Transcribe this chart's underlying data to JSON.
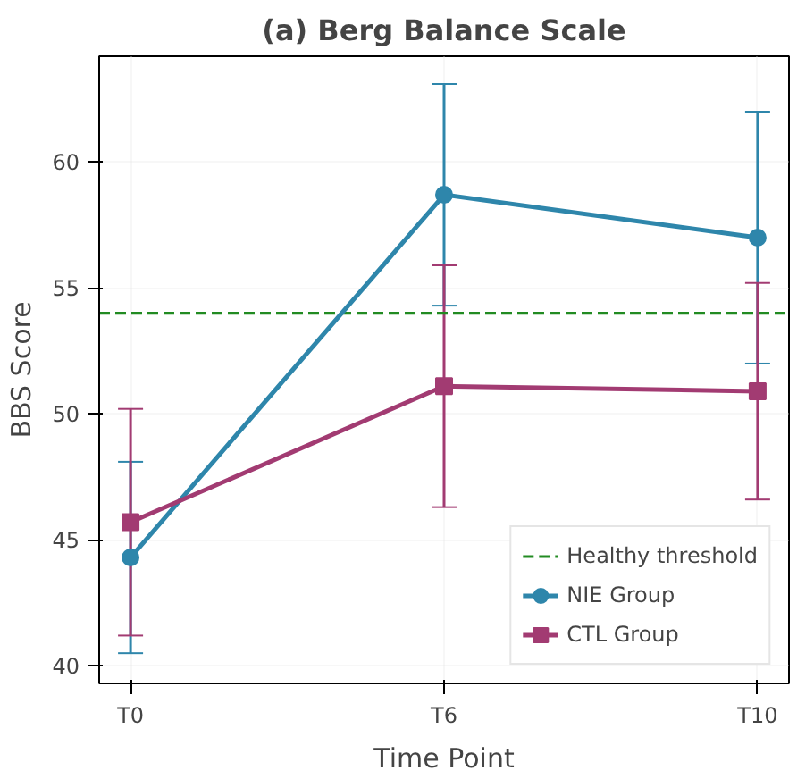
{
  "chart_data": {
    "type": "line",
    "title": "(a) Berg Balance Scale",
    "xlabel": "Time Point",
    "ylabel": "BBS Score",
    "categories": [
      "T0",
      "T6",
      "T10"
    ],
    "series": [
      {
        "name": "NIE Group",
        "color": "#2e86ab",
        "marker": "circle",
        "values": [
          44.3,
          58.7,
          57.0
        ],
        "errors": [
          3.8,
          4.4,
          5.0
        ]
      },
      {
        "name": "CTL Group",
        "color": "#a23b72",
        "marker": "square",
        "values": [
          45.7,
          51.1,
          50.9
        ],
        "errors": [
          4.5,
          4.8,
          4.3
        ]
      }
    ],
    "ref_lines": [
      {
        "axis": "y",
        "value": 54,
        "label": "Healthy threshold",
        "color": "#228b22",
        "line_style": "dashed"
      }
    ],
    "ylim": [
      39.3,
      64.2
    ],
    "yticks": [
      40,
      45,
      50,
      55,
      60
    ],
    "grid": true,
    "legend": "bottom right"
  }
}
